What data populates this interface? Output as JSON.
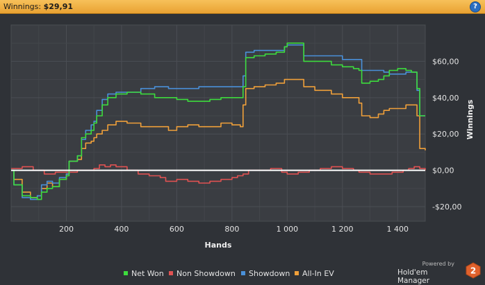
{
  "window": {
    "title_label": "Winnings:",
    "title_value": "$29,91",
    "help_glyph": "?"
  },
  "branding": {
    "powered_by": "Powered by",
    "product": "Hold'em Manager",
    "logo_number": "2"
  },
  "chart_data": {
    "type": "line",
    "xlabel": "Hands",
    "ylabel": "Winnings",
    "xlim": [
      0,
      1500
    ],
    "ylim": [
      -28,
      80
    ],
    "x_ticks": [
      200,
      400,
      600,
      800,
      1000,
      1200,
      1400
    ],
    "x_tick_labels": [
      "200",
      "400",
      "600",
      "800",
      "1 000",
      "1 200",
      "1 400"
    ],
    "y_ticks": [
      -20,
      0,
      20,
      40,
      60
    ],
    "y_tick_labels": [
      "-$20,00",
      "$0,00",
      "$20,00",
      "$40,00",
      "$60,00"
    ],
    "grid": true,
    "zero_line": true,
    "legend_position": "bottom",
    "series": [
      {
        "name": "Net Won",
        "color": "#3ddc3d",
        "points": [
          [
            0,
            0
          ],
          [
            10,
            -8
          ],
          [
            40,
            -14
          ],
          [
            70,
            -15
          ],
          [
            95,
            -16
          ],
          [
            110,
            -12
          ],
          [
            130,
            -10
          ],
          [
            150,
            -9
          ],
          [
            175,
            -5
          ],
          [
            200,
            -3
          ],
          [
            210,
            5
          ],
          [
            240,
            8
          ],
          [
            255,
            18
          ],
          [
            270,
            20
          ],
          [
            290,
            22
          ],
          [
            300,
            26
          ],
          [
            310,
            30
          ],
          [
            330,
            36
          ],
          [
            350,
            40
          ],
          [
            380,
            42
          ],
          [
            420,
            43
          ],
          [
            470,
            42
          ],
          [
            520,
            40
          ],
          [
            570,
            40
          ],
          [
            600,
            39
          ],
          [
            640,
            38
          ],
          [
            680,
            38
          ],
          [
            720,
            39
          ],
          [
            760,
            40
          ],
          [
            800,
            40
          ],
          [
            830,
            40
          ],
          [
            840,
            46
          ],
          [
            850,
            62
          ],
          [
            880,
            63
          ],
          [
            920,
            64
          ],
          [
            960,
            65
          ],
          [
            990,
            68
          ],
          [
            1000,
            70
          ],
          [
            1040,
            70
          ],
          [
            1060,
            60
          ],
          [
            1100,
            60
          ],
          [
            1160,
            58
          ],
          [
            1200,
            57
          ],
          [
            1240,
            56
          ],
          [
            1260,
            55
          ],
          [
            1270,
            48
          ],
          [
            1300,
            49
          ],
          [
            1330,
            50
          ],
          [
            1350,
            52
          ],
          [
            1370,
            55
          ],
          [
            1400,
            56
          ],
          [
            1430,
            55
          ],
          [
            1450,
            54
          ],
          [
            1470,
            45
          ],
          [
            1480,
            30
          ],
          [
            1500,
            30
          ]
        ]
      },
      {
        "name": "Non Showdown",
        "color": "#e05252",
        "points": [
          [
            0,
            1
          ],
          [
            40,
            2
          ],
          [
            80,
            0
          ],
          [
            120,
            -2
          ],
          [
            160,
            -1
          ],
          [
            200,
            -1
          ],
          [
            240,
            0
          ],
          [
            280,
            0
          ],
          [
            300,
            1
          ],
          [
            320,
            3
          ],
          [
            340,
            2
          ],
          [
            360,
            3
          ],
          [
            380,
            2
          ],
          [
            400,
            2
          ],
          [
            420,
            0
          ],
          [
            460,
            -2
          ],
          [
            500,
            -3
          ],
          [
            540,
            -4
          ],
          [
            560,
            -6
          ],
          [
            600,
            -5
          ],
          [
            640,
            -6
          ],
          [
            680,
            -7
          ],
          [
            720,
            -6
          ],
          [
            760,
            -5
          ],
          [
            800,
            -4
          ],
          [
            820,
            -3
          ],
          [
            840,
            -2
          ],
          [
            860,
            0
          ],
          [
            900,
            0
          ],
          [
            940,
            1
          ],
          [
            980,
            -1
          ],
          [
            1000,
            -2
          ],
          [
            1040,
            -1
          ],
          [
            1080,
            0
          ],
          [
            1120,
            1
          ],
          [
            1160,
            2
          ],
          [
            1200,
            1
          ],
          [
            1240,
            0
          ],
          [
            1260,
            -1
          ],
          [
            1300,
            -2
          ],
          [
            1340,
            -2
          ],
          [
            1380,
            -1
          ],
          [
            1420,
            0
          ],
          [
            1440,
            1
          ],
          [
            1460,
            2
          ],
          [
            1480,
            1
          ],
          [
            1500,
            0
          ]
        ]
      },
      {
        "name": "Showdown",
        "color": "#4a90d9",
        "points": [
          [
            0,
            0
          ],
          [
            10,
            -8
          ],
          [
            40,
            -15
          ],
          [
            70,
            -16
          ],
          [
            95,
            -14
          ],
          [
            110,
            -8
          ],
          [
            130,
            -6
          ],
          [
            150,
            -7
          ],
          [
            175,
            -4
          ],
          [
            200,
            -2
          ],
          [
            210,
            5
          ],
          [
            240,
            8
          ],
          [
            255,
            17
          ],
          [
            270,
            22
          ],
          [
            290,
            25
          ],
          [
            300,
            27
          ],
          [
            310,
            33
          ],
          [
            330,
            39
          ],
          [
            350,
            42
          ],
          [
            380,
            43
          ],
          [
            420,
            43
          ],
          [
            470,
            45
          ],
          [
            520,
            46
          ],
          [
            570,
            45
          ],
          [
            600,
            45
          ],
          [
            640,
            45
          ],
          [
            680,
            46
          ],
          [
            720,
            46
          ],
          [
            760,
            46
          ],
          [
            800,
            46
          ],
          [
            830,
            46
          ],
          [
            840,
            52
          ],
          [
            850,
            65
          ],
          [
            880,
            66
          ],
          [
            920,
            66
          ],
          [
            960,
            66
          ],
          [
            990,
            68
          ],
          [
            1000,
            69
          ],
          [
            1040,
            69
          ],
          [
            1060,
            63
          ],
          [
            1100,
            63
          ],
          [
            1160,
            63
          ],
          [
            1200,
            61
          ],
          [
            1240,
            61
          ],
          [
            1260,
            61
          ],
          [
            1270,
            55
          ],
          [
            1300,
            55
          ],
          [
            1330,
            55
          ],
          [
            1350,
            54
          ],
          [
            1370,
            53
          ],
          [
            1400,
            53
          ],
          [
            1430,
            54
          ],
          [
            1450,
            54
          ],
          [
            1470,
            44
          ],
          [
            1480,
            30
          ],
          [
            1500,
            30
          ]
        ]
      },
      {
        "name": "All-In EV",
        "color": "#f0a03a",
        "points": [
          [
            0,
            0
          ],
          [
            10,
            -5
          ],
          [
            40,
            -12
          ],
          [
            70,
            -15
          ],
          [
            95,
            -14
          ],
          [
            110,
            -10
          ],
          [
            130,
            -7
          ],
          [
            150,
            -9
          ],
          [
            175,
            -5
          ],
          [
            200,
            -2
          ],
          [
            210,
            5
          ],
          [
            240,
            6
          ],
          [
            255,
            12
          ],
          [
            270,
            15
          ],
          [
            290,
            16
          ],
          [
            300,
            18
          ],
          [
            310,
            20
          ],
          [
            330,
            22
          ],
          [
            350,
            25
          ],
          [
            380,
            27
          ],
          [
            420,
            26
          ],
          [
            470,
            24
          ],
          [
            520,
            24
          ],
          [
            570,
            22
          ],
          [
            600,
            24
          ],
          [
            640,
            25
          ],
          [
            680,
            24
          ],
          [
            720,
            24
          ],
          [
            760,
            26
          ],
          [
            800,
            25
          ],
          [
            830,
            24
          ],
          [
            840,
            36
          ],
          [
            850,
            45
          ],
          [
            880,
            46
          ],
          [
            920,
            47
          ],
          [
            960,
            48
          ],
          [
            990,
            50
          ],
          [
            1000,
            50
          ],
          [
            1040,
            50
          ],
          [
            1060,
            46
          ],
          [
            1100,
            44
          ],
          [
            1160,
            42
          ],
          [
            1200,
            40
          ],
          [
            1240,
            40
          ],
          [
            1260,
            37
          ],
          [
            1270,
            30
          ],
          [
            1300,
            29
          ],
          [
            1330,
            31
          ],
          [
            1350,
            33
          ],
          [
            1370,
            34
          ],
          [
            1400,
            34
          ],
          [
            1430,
            36
          ],
          [
            1450,
            36
          ],
          [
            1470,
            30
          ],
          [
            1480,
            12
          ],
          [
            1500,
            11
          ]
        ]
      }
    ]
  }
}
